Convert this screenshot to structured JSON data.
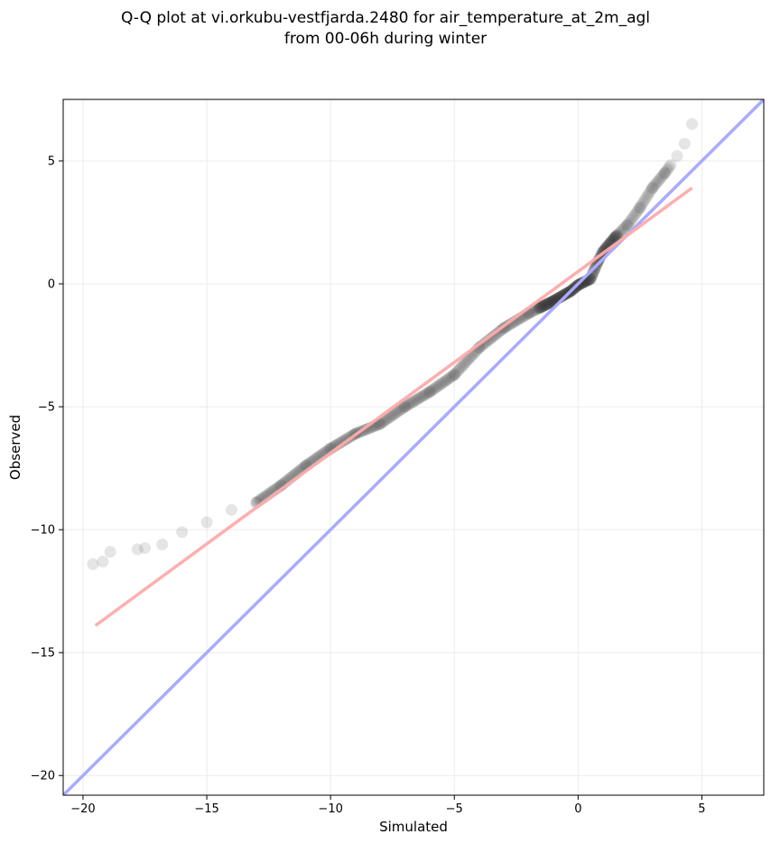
{
  "chart_data": {
    "type": "scatter",
    "title_lines": [
      "Q-Q plot at vi.orkubu-vestfjarda.2480 for air_temperature_at_2m_agl",
      "from 00-06h during winter"
    ],
    "xlabel": "Simulated",
    "ylabel": "Observed",
    "xlim": [
      -20.8,
      7.5
    ],
    "ylim": [
      -20.8,
      7.5
    ],
    "xticks": [
      -20,
      -15,
      -10,
      -5,
      0,
      5
    ],
    "yticks": [
      -20,
      -15,
      -10,
      -5,
      0,
      5
    ],
    "xtick_labels": [
      "−20",
      "−15",
      "−10",
      "−5",
      "0",
      "5"
    ],
    "ytick_labels": [
      "−20",
      "−15",
      "−10",
      "−5",
      "0",
      "5"
    ],
    "grid": true,
    "colors": {
      "points": "#333333",
      "identity_line": "#aaaaff",
      "fit_line": "#ffaaaa",
      "axes": "#000000",
      "grid": "#ebebeb"
    },
    "identity_line": {
      "x": [
        -20.8,
        7.5
      ],
      "y": [
        -20.8,
        7.5
      ]
    },
    "fit_line": {
      "x": [
        -19.5,
        4.6
      ],
      "y": [
        -13.9,
        3.9
      ]
    },
    "quantile_anchors": {
      "x": [
        -19.6,
        -19.2,
        -18.9,
        -17.8,
        -17.5,
        -16.8,
        -16.0,
        -15.0,
        -14.0,
        -13.0,
        -12.0,
        -11.0,
        -10.0,
        -9.0,
        -8.0,
        -7.0,
        -6.0,
        -5.0,
        -4.0,
        -3.0,
        -2.0,
        -1.0,
        -0.3,
        0.0,
        0.5,
        0.8,
        1.0,
        1.5,
        2.0,
        2.5,
        3.0,
        3.5,
        4.0,
        4.3,
        4.6
      ],
      "y": [
        -11.4,
        -11.3,
        -10.9,
        -10.8,
        -10.75,
        -10.6,
        -10.1,
        -9.7,
        -9.2,
        -8.9,
        -8.2,
        -7.4,
        -6.7,
        -6.1,
        -5.7,
        -5.0,
        -4.4,
        -3.7,
        -2.6,
        -1.8,
        -1.2,
        -0.7,
        -0.3,
        -0.05,
        0.2,
        0.9,
        1.3,
        1.9,
        2.4,
        3.1,
        3.9,
        4.5,
        5.2,
        5.7,
        6.5
      ]
    }
  }
}
